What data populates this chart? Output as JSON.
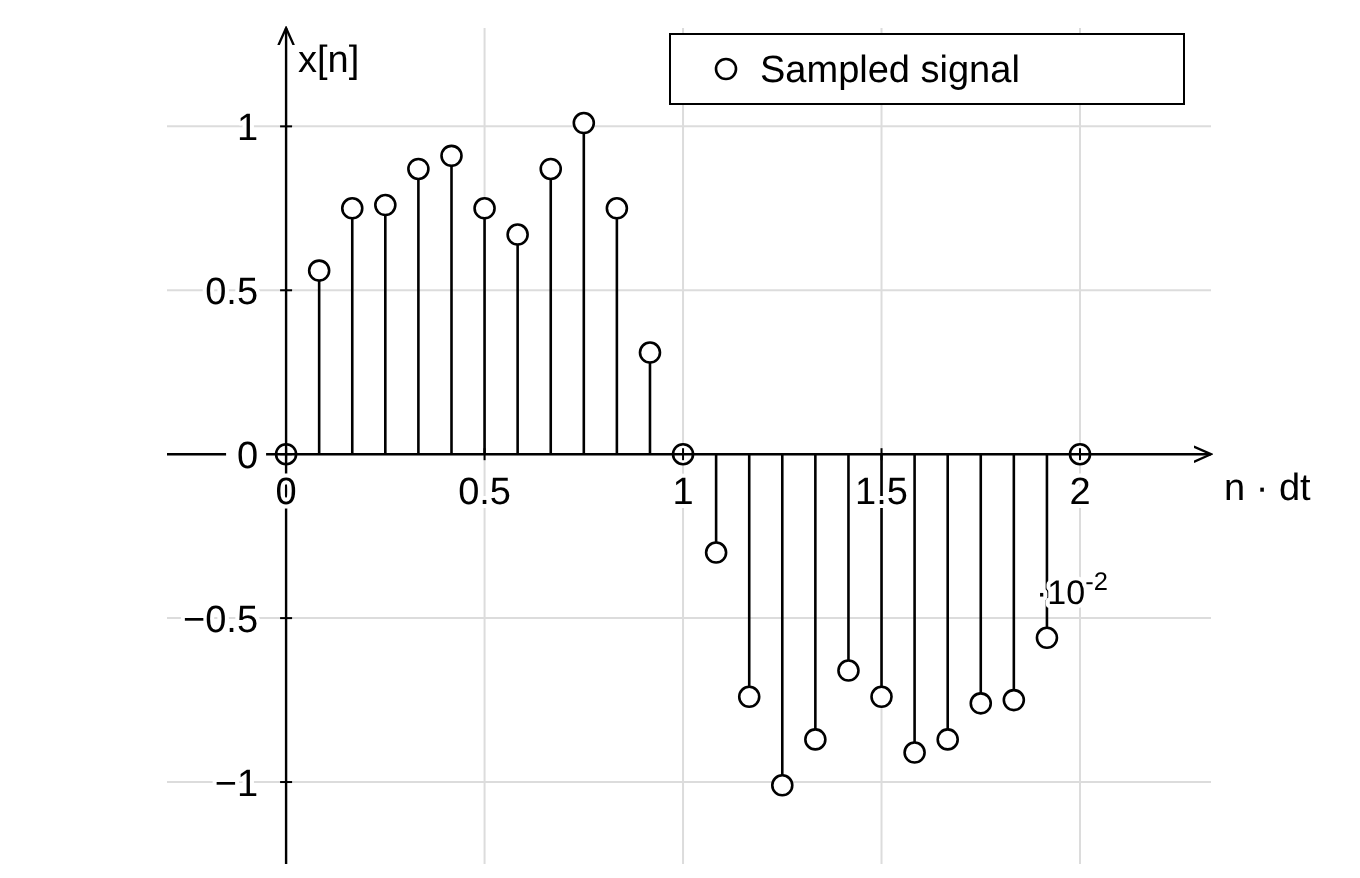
{
  "chart_data": {
    "type": "lollipop",
    "xlabel": "n · dt",
    "ylabel": "x[n]",
    "annotations": [
      "·10$^{-2}$"
    ],
    "x": [
      0,
      0.0833,
      0.1667,
      0.25,
      0.3333,
      0.4167,
      0.5,
      0.5833,
      0.6667,
      0.75,
      0.8333,
      0.9167,
      1,
      1.0833,
      1.1667,
      1.25,
      1.3333,
      1.4167,
      1.5,
      1.5833,
      1.6667,
      1.75,
      1.8333,
      1.9167,
      2
    ],
    "series": [
      {
        "name": "Sampled signal",
        "color": "#000000",
        "values": [
          0,
          0.56,
          0.75,
          0.76,
          0.87,
          0.91,
          0.75,
          0.67,
          0.87,
          1.01,
          0.75,
          0.31,
          0,
          -0.3,
          -0.74,
          -1.01,
          -0.87,
          -0.66,
          -0.74,
          -0.91,
          -0.87,
          -0.76,
          -0.75,
          -0.56,
          0
        ]
      }
    ],
    "xlim": [
      -0.3,
      2.33
    ],
    "ylim": [
      -1.25,
      1.3
    ],
    "xticks": [
      0,
      0.5,
      1,
      1.5,
      2
    ],
    "yticks": [
      {
        "value": -1,
        "label": "−1"
      },
      {
        "value": -0.5,
        "label": "−0.5"
      },
      0,
      0.5,
      1
    ],
    "grid": true,
    "legend": "top right",
    "marker": "circle"
  }
}
